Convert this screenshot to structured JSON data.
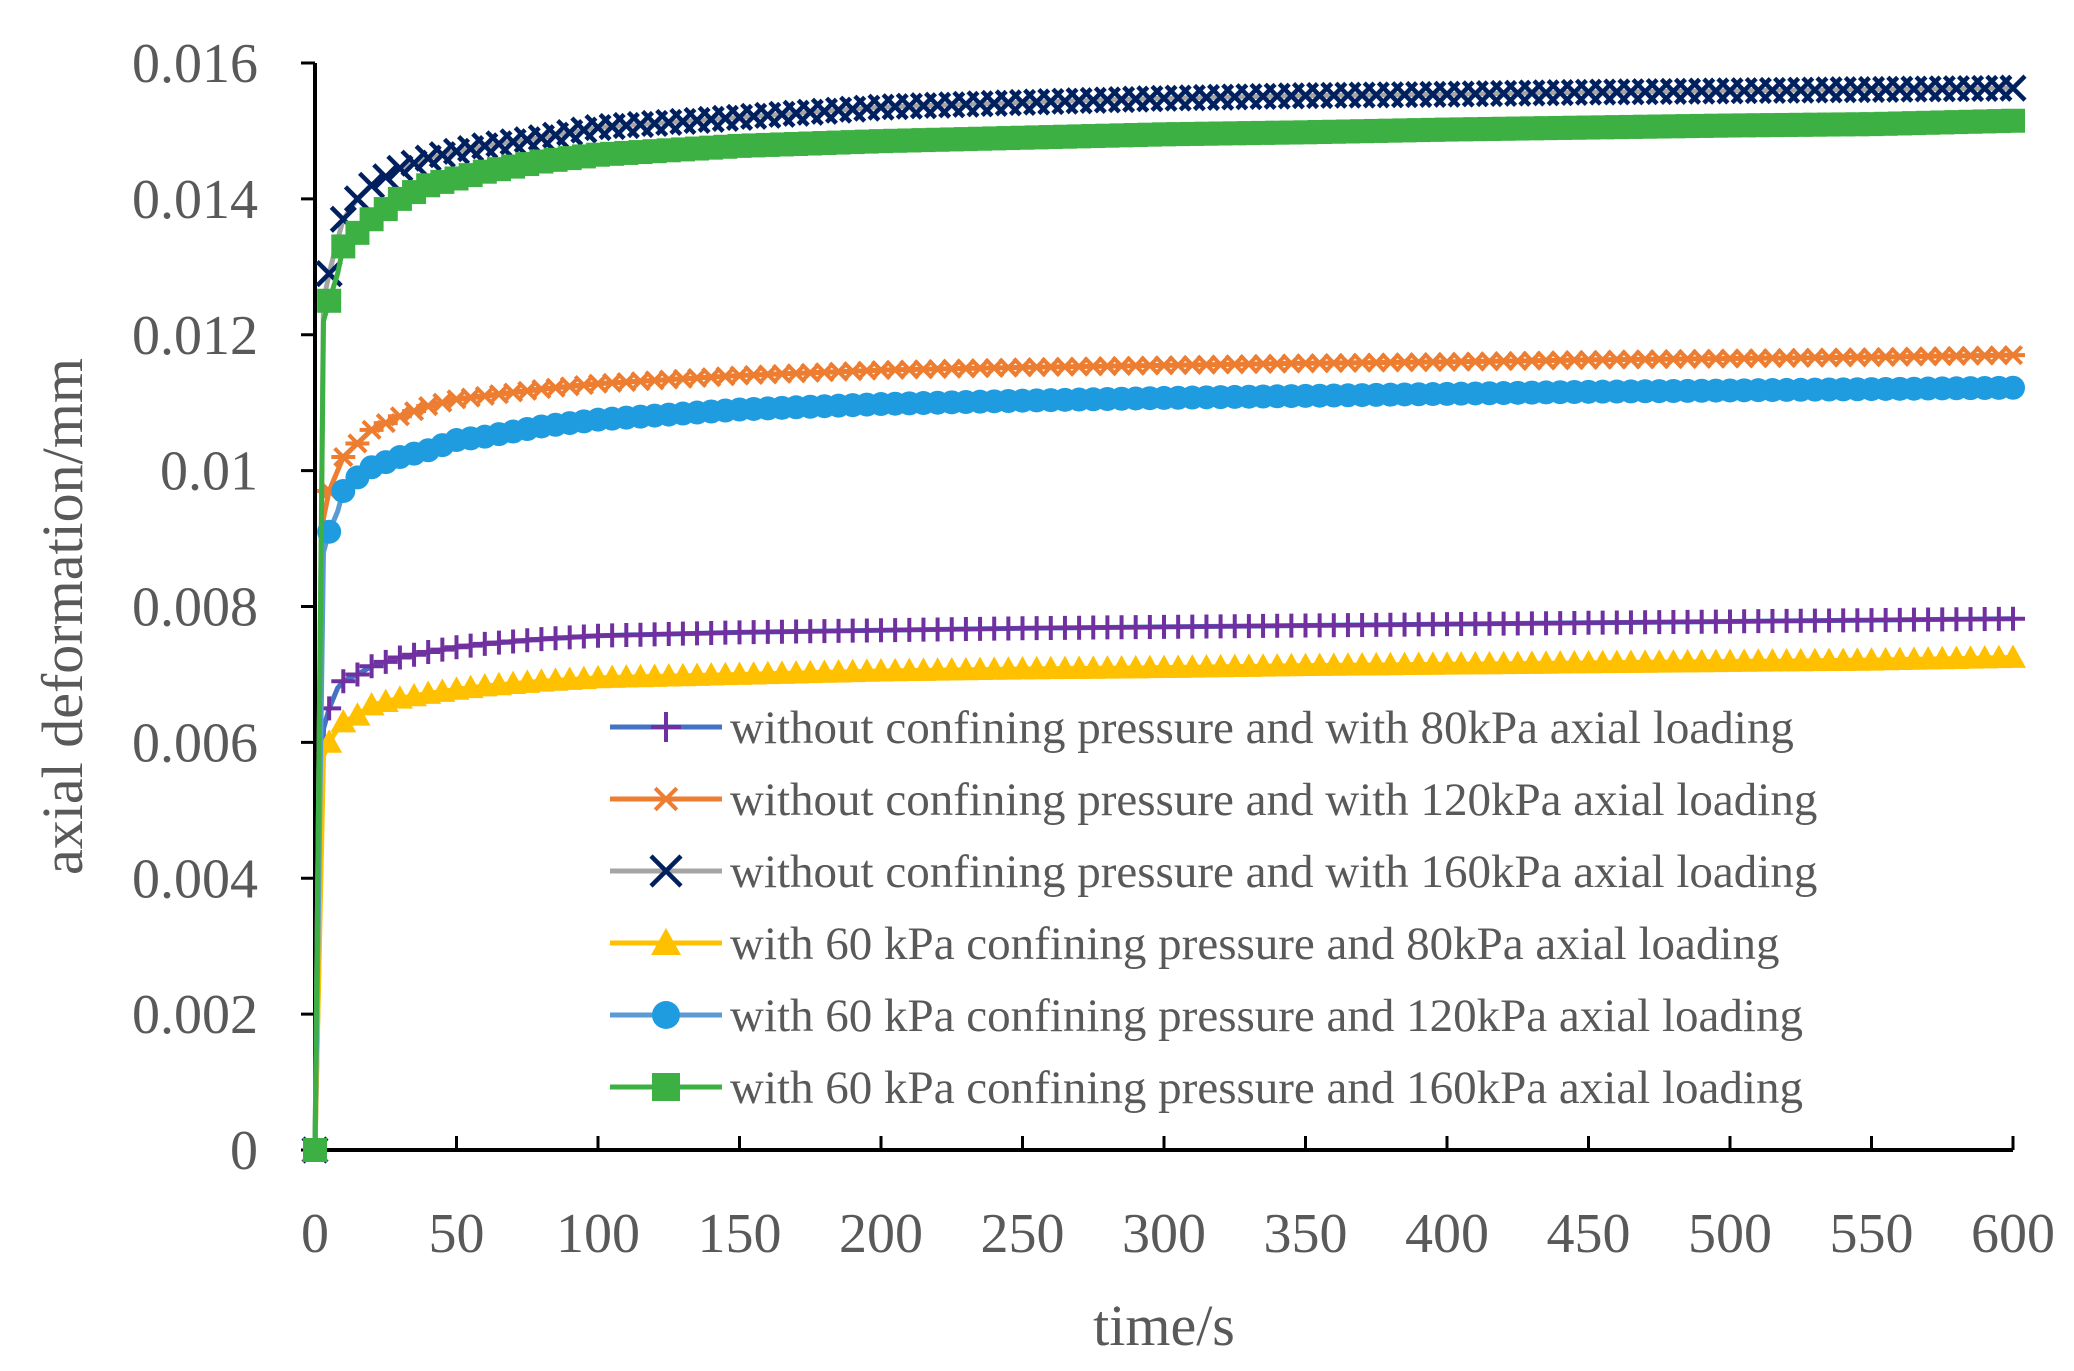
{
  "chart_data": {
    "type": "line",
    "xlabel": "time/s",
    "ylabel": "axial deformation/mm",
    "xlim": [
      0,
      600
    ],
    "ylim": [
      0,
      0.016
    ],
    "x_ticks": [
      0,
      50,
      100,
      150,
      200,
      250,
      300,
      350,
      400,
      450,
      500,
      550,
      600
    ],
    "y_ticks": [
      0,
      0.002,
      0.004,
      0.006,
      0.008,
      0.01,
      0.012,
      0.014,
      0.016
    ],
    "x_tick_labels": [
      "0",
      "50",
      "100",
      "150",
      "200",
      "250",
      "300",
      "350",
      "400",
      "450",
      "500",
      "550",
      "600"
    ],
    "y_tick_labels": [
      "0",
      "0.002",
      "0.004",
      "0.006",
      "0.008",
      "0.01",
      "0.012",
      "0.014",
      "0.016"
    ],
    "grid": false,
    "legend_position": "bottom-right",
    "series": [
      {
        "name": "without confining pressure and with 80kPa axial loading",
        "color": "#4472C4",
        "marker_color": "#7030A0",
        "marker": "plus",
        "x": [
          0,
          3,
          5,
          8,
          10,
          15,
          20,
          30,
          40,
          50,
          60,
          80,
          100,
          150,
          200,
          250,
          300,
          350,
          400,
          450,
          500,
          550,
          600
        ],
        "y": [
          0,
          0.0062,
          0.0065,
          0.0068,
          0.0069,
          0.007,
          0.00712,
          0.00725,
          0.00733,
          0.0074,
          0.00745,
          0.00752,
          0.00757,
          0.00762,
          0.00765,
          0.00768,
          0.0077,
          0.00772,
          0.00774,
          0.00776,
          0.00778,
          0.0078,
          0.00782
        ]
      },
      {
        "name": "without confining pressure and with 120kPa axial loading",
        "color": "#ED7D31",
        "marker_color": "#ED7D31",
        "marker": "asterisk",
        "x": [
          0,
          3,
          5,
          8,
          10,
          15,
          20,
          30,
          40,
          50,
          60,
          80,
          100,
          150,
          200,
          250,
          300,
          350,
          400,
          450,
          500,
          550,
          600
        ],
        "y": [
          0,
          0.0093,
          0.0097,
          0.01,
          0.0102,
          0.0104,
          0.0106,
          0.0108,
          0.01095,
          0.01105,
          0.0111,
          0.0112,
          0.01128,
          0.0114,
          0.01148,
          0.01152,
          0.01155,
          0.01158,
          0.0116,
          0.01163,
          0.01165,
          0.01167,
          0.0117
        ]
      },
      {
        "name": "without confining pressure and with 160kPa axial loading",
        "color": "#A5A5A5",
        "marker_color": "#002060",
        "marker": "x",
        "x": [
          0,
          3,
          5,
          8,
          10,
          15,
          20,
          30,
          40,
          50,
          60,
          80,
          100,
          150,
          200,
          250,
          300,
          350,
          400,
          450,
          500,
          550,
          600
        ],
        "y": [
          0,
          0.0125,
          0.0129,
          0.0134,
          0.0137,
          0.014,
          0.0142,
          0.01445,
          0.0146,
          0.0147,
          0.01478,
          0.0149,
          0.01505,
          0.0152,
          0.01535,
          0.01542,
          0.01548,
          0.01552,
          0.01554,
          0.01557,
          0.01559,
          0.01561,
          0.01563
        ]
      },
      {
        "name": "with 60 kPa confining pressure and 80kPa axial loading",
        "color": "#FFC000",
        "marker_color": "#FFC000",
        "marker": "triangle",
        "x": [
          0,
          3,
          5,
          8,
          10,
          15,
          20,
          30,
          40,
          50,
          60,
          80,
          100,
          150,
          200,
          250,
          300,
          350,
          400,
          450,
          500,
          550,
          600
        ],
        "y": [
          0,
          0.0058,
          0.006,
          0.0062,
          0.0063,
          0.0064,
          0.00655,
          0.00665,
          0.00672,
          0.00678,
          0.00683,
          0.0069,
          0.00695,
          0.007,
          0.00705,
          0.00708,
          0.0071,
          0.00713,
          0.00715,
          0.00717,
          0.00719,
          0.00721,
          0.00725
        ]
      },
      {
        "name": "with 60 kPa confining pressure and 120kPa axial loading",
        "color": "#5B9BD5",
        "marker_color": "#1F9CE0",
        "marker": "circle",
        "x": [
          0,
          3,
          5,
          8,
          10,
          15,
          20,
          30,
          40,
          50,
          60,
          80,
          100,
          150,
          200,
          250,
          300,
          350,
          400,
          450,
          500,
          550,
          600
        ],
        "y": [
          0,
          0.0088,
          0.0091,
          0.0094,
          0.0097,
          0.0099,
          0.01005,
          0.0102,
          0.0103,
          0.01045,
          0.0105,
          0.01065,
          0.01075,
          0.0109,
          0.01098,
          0.01103,
          0.01107,
          0.0111,
          0.01113,
          0.01116,
          0.01118,
          0.0112,
          0.01122
        ]
      },
      {
        "name": "with 60 kPa confining pressure and 160kPa axial loading",
        "color": "#3CB043",
        "marker_color": "#3CB043",
        "marker": "square",
        "x": [
          0,
          3,
          5,
          8,
          10,
          15,
          20,
          30,
          40,
          50,
          60,
          80,
          100,
          150,
          200,
          250,
          300,
          350,
          400,
          450,
          500,
          550,
          600
        ],
        "y": [
          0,
          0.0122,
          0.0125,
          0.0129,
          0.0133,
          0.0135,
          0.0137,
          0.014,
          0.0142,
          0.0143,
          0.0144,
          0.01455,
          0.01465,
          0.01478,
          0.01485,
          0.0149,
          0.01495,
          0.01498,
          0.01502,
          0.01505,
          0.01508,
          0.0151,
          0.01515
        ]
      }
    ]
  }
}
